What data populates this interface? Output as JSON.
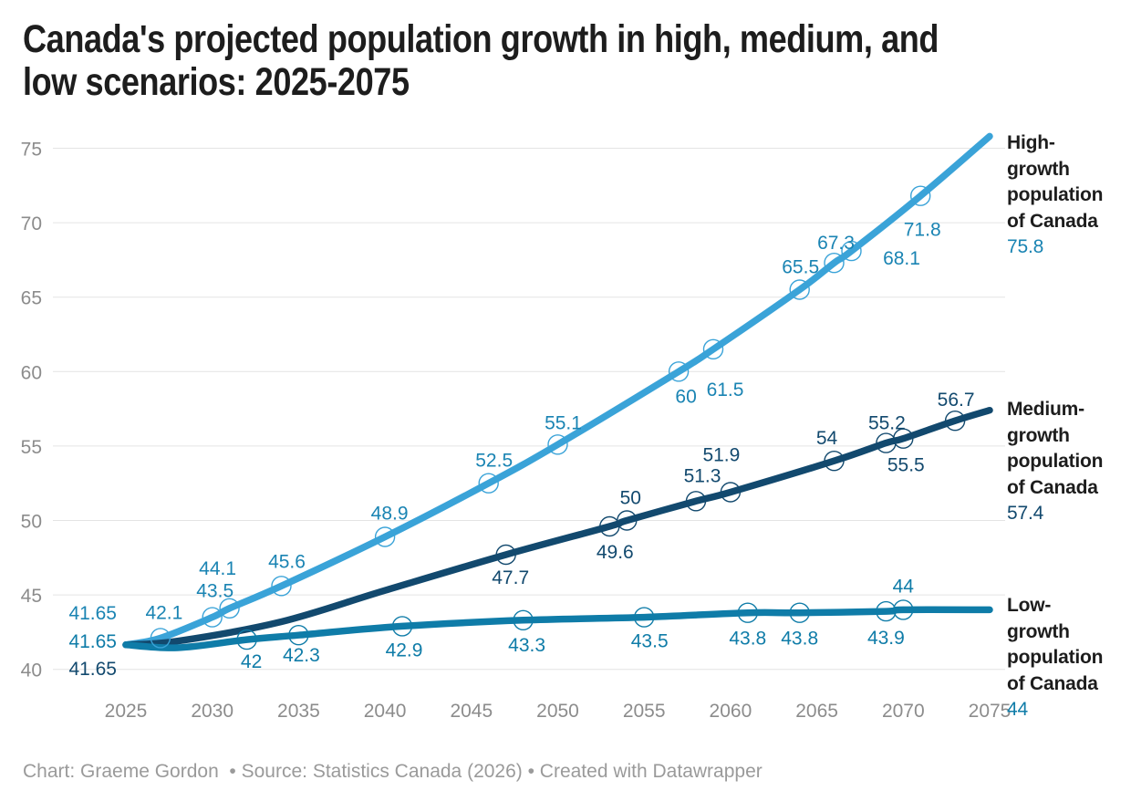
{
  "footer": {
    "text": "Chart: Graeme Gordon  • Source: Statistics Canada (2026) • Created with Datawrapper"
  },
  "colors": {
    "background": "#ffffff",
    "title_text": "#1d1d1d",
    "axis_text": "#8c8c8c",
    "gridline": "#e4e4e4",
    "footer_text": "#9a9a9a",
    "legend_text": "#1d1d1d"
  },
  "chart_data": {
    "type": "line",
    "title": "Canada's projected population growth in high, medium, and low scenarios: 2025-2075",
    "title_lines": [
      "Canada's projected population growth in high, medium, and",
      "low scenarios: 2025-2075"
    ],
    "xlabel": "",
    "ylabel": "",
    "x_axis": {
      "ticks": [
        2025,
        2030,
        2035,
        2040,
        2045,
        2050,
        2055,
        2060,
        2065,
        2070,
        2075
      ],
      "range": [
        2025,
        2075
      ]
    },
    "y_axis": {
      "ticks": [
        40,
        45,
        50,
        55,
        60,
        65,
        70,
        75
      ],
      "range": [
        40,
        75
      ],
      "grid": true
    },
    "legend_position": "right",
    "series": [
      {
        "id": "high",
        "name": "High-growth population of Canada",
        "end_label": "75.8",
        "color": "#3aa3d8",
        "label_color": "#1a84b3",
        "points": [
          {
            "year": 2025,
            "value": 41.65,
            "label": "41.65",
            "marker": false,
            "anchor": "end",
            "dx": -10,
            "dy": -35
          },
          {
            "year": 2027,
            "value": 42.1,
            "label": "42.1",
            "marker": true,
            "dx": 4,
            "dy": -28
          },
          {
            "year": 2030,
            "value": 43.5,
            "label": "43.5",
            "marker": true,
            "dx": 3,
            "dy": -29
          },
          {
            "year": 2031,
            "value": 44.1,
            "label": "44.1",
            "marker": true,
            "dx": -13,
            "dy": -44
          },
          {
            "year": 2034,
            "value": 45.6,
            "label": "45.6",
            "marker": true,
            "dx": 6,
            "dy": -27
          },
          {
            "year": 2040,
            "value": 48.9,
            "label": "48.9",
            "marker": true,
            "dx": 5,
            "dy": -26
          },
          {
            "year": 2046,
            "value": 52.5,
            "label": "52.5",
            "marker": true,
            "dx": 6,
            "dy": -25
          },
          {
            "year": 2050,
            "value": 55.1,
            "label": "55.1",
            "marker": true,
            "dx": 6,
            "dy": -24
          },
          {
            "year": 2057,
            "value": 60,
            "label": "60",
            "marker": true,
            "dx": 8,
            "dy": 27
          },
          {
            "year": 2059,
            "value": 61.5,
            "label": "61.5",
            "marker": true,
            "dx": 13,
            "dy": 44
          },
          {
            "year": 2064,
            "value": 65.5,
            "label": "65.5",
            "marker": true,
            "dx": 1,
            "dy": -25
          },
          {
            "year": 2066,
            "value": 67.3,
            "label": "67.3",
            "marker": true,
            "dx": 2,
            "dy": -22
          },
          {
            "year": 2067,
            "value": 68.1,
            "label": "68.1",
            "marker": true,
            "dx": 55,
            "dy": 8
          },
          {
            "year": 2071,
            "value": 71.8,
            "label": "71.8",
            "marker": true,
            "dx": 2,
            "dy": 37
          },
          {
            "year": 2075,
            "value": 75.8,
            "label": "",
            "marker": false,
            "dx": 0,
            "dy": 0
          }
        ]
      },
      {
        "id": "medium",
        "name": "Medium-growth population of Canada",
        "end_label": "57.4",
        "color": "#12496e",
        "label_color": "#12496e",
        "points": [
          {
            "year": 2025,
            "value": 41.65,
            "label": "41.65",
            "marker": false,
            "anchor": "end",
            "dx": -10,
            "dy": 26
          },
          {
            "year": 2028,
            "value": 41.9,
            "label": "",
            "marker": false,
            "dx": 0,
            "dy": 0
          },
          {
            "year": 2034,
            "value": 43.2,
            "label": "",
            "marker": false,
            "dx": 0,
            "dy": 0
          },
          {
            "year": 2040,
            "value": 45.3,
            "label": "",
            "marker": false,
            "dx": 0,
            "dy": 0
          },
          {
            "year": 2047,
            "value": 47.7,
            "label": "47.7",
            "marker": true,
            "dx": 5,
            "dy": 25
          },
          {
            "year": 2053,
            "value": 49.6,
            "label": "49.6",
            "marker": true,
            "dx": 6,
            "dy": 28
          },
          {
            "year": 2054,
            "value": 50,
            "label": "50",
            "marker": true,
            "dx": 4,
            "dy": -25
          },
          {
            "year": 2058,
            "value": 51.3,
            "label": "51.3",
            "marker": true,
            "dx": 7,
            "dy": -28
          },
          {
            "year": 2060,
            "value": 51.9,
            "label": "51.9",
            "marker": true,
            "dx": -10,
            "dy": -41
          },
          {
            "year": 2066,
            "value": 54,
            "label": "54",
            "marker": true,
            "dx": -8,
            "dy": -25
          },
          {
            "year": 2069,
            "value": 55.2,
            "label": "55.2",
            "marker": true,
            "dx": 1,
            "dy": -22
          },
          {
            "year": 2070,
            "value": 55.5,
            "label": "55.5",
            "marker": true,
            "dx": 3,
            "dy": 29
          },
          {
            "year": 2073,
            "value": 56.7,
            "label": "56.7",
            "marker": true,
            "dx": 1,
            "dy": -23
          },
          {
            "year": 2075,
            "value": 57.4,
            "label": "",
            "marker": false,
            "dx": 0,
            "dy": 0
          }
        ]
      },
      {
        "id": "low",
        "name": "Low-growth population of Canada",
        "end_label": "44",
        "color": "#0f7ca8",
        "label_color": "#0f7ca8",
        "points": [
          {
            "year": 2025,
            "value": 41.65,
            "label": "41.65",
            "marker": false,
            "anchor": "end",
            "dx": -10,
            "dy": -4
          },
          {
            "year": 2028,
            "value": 41.45,
            "label": "",
            "marker": false,
            "dx": 0,
            "dy": 0
          },
          {
            "year": 2032,
            "value": 42,
            "label": "42",
            "marker": true,
            "dx": 5,
            "dy": 24
          },
          {
            "year": 2035,
            "value": 42.3,
            "label": "42.3",
            "marker": true,
            "dx": 3,
            "dy": 22
          },
          {
            "year": 2041,
            "value": 42.9,
            "label": "42.9",
            "marker": true,
            "dx": 2,
            "dy": 26
          },
          {
            "year": 2048,
            "value": 43.3,
            "label": "43.3",
            "marker": true,
            "dx": 4,
            "dy": 27
          },
          {
            "year": 2055,
            "value": 43.5,
            "label": "43.5",
            "marker": true,
            "dx": 6,
            "dy": 26
          },
          {
            "year": 2061,
            "value": 43.8,
            "label": "43.8",
            "marker": true,
            "dx": 0,
            "dy": 28
          },
          {
            "year": 2064,
            "value": 43.8,
            "label": "43.8",
            "marker": true,
            "dx": 0,
            "dy": 28
          },
          {
            "year": 2069,
            "value": 43.9,
            "label": "43.9",
            "marker": true,
            "dx": 0,
            "dy": 29
          },
          {
            "year": 2070,
            "value": 44,
            "label": "44",
            "marker": true,
            "dx": 0,
            "dy": -26
          },
          {
            "year": 2075,
            "value": 44,
            "label": "",
            "marker": false,
            "dx": 0,
            "dy": 0
          }
        ]
      }
    ]
  }
}
